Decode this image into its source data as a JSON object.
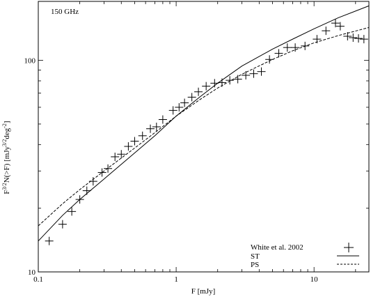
{
  "chart_data": {
    "type": "scatter",
    "annotation": "150 GHz",
    "xlabel": "F [mJy]",
    "ylabel_parts": {
      "prefix": "F",
      "exp1": "3/2",
      "mid": "N(>F) [mJy",
      "exp2": "3/2",
      "mid2": "deg",
      "exp3": "-2",
      "suffix": "]"
    },
    "x_scale": "log",
    "y_scale": "log",
    "xlim": [
      0.1,
      25
    ],
    "ylim": [
      10,
      190
    ],
    "x_ticks": [
      {
        "value": 0.1,
        "label": "0.1"
      },
      {
        "value": 1,
        "label": "1"
      },
      {
        "value": 10,
        "label": "10"
      }
    ],
    "y_ticks": [
      {
        "value": 10,
        "label": "10"
      },
      {
        "value": 100,
        "label": "100"
      }
    ],
    "legend_position": "bottom-right",
    "series": [
      {
        "name": "White et al. 2002",
        "kind": "markers",
        "marker": "plus",
        "x": [
          0.12,
          0.15,
          0.175,
          0.2,
          0.225,
          0.25,
          0.29,
          0.32,
          0.36,
          0.4,
          0.45,
          0.5,
          0.57,
          0.65,
          0.72,
          0.8,
          0.95,
          1.05,
          1.15,
          1.3,
          1.45,
          1.65,
          1.9,
          2.15,
          2.45,
          2.8,
          3.2,
          3.65,
          4.15,
          4.75,
          5.55,
          6.4,
          7.3,
          8.6,
          10.5,
          12.2,
          14.3,
          15.5,
          17.5,
          19.2,
          21.0,
          23.0
        ],
        "y": [
          14.0,
          16.8,
          19.3,
          22.0,
          24.2,
          26.8,
          29.5,
          30.8,
          35.0,
          36.0,
          39.2,
          41.5,
          44.0,
          47.5,
          48.5,
          52.5,
          58.0,
          60.0,
          63.0,
          67.0,
          71.0,
          75.5,
          78.0,
          78.5,
          80.5,
          81.5,
          85.0,
          86.5,
          88.5,
          101.0,
          108.0,
          115.0,
          115.0,
          117.0,
          126.0,
          138.0,
          150.0,
          145.0,
          130.0,
          128.0,
          127.0,
          126.0
        ]
      },
      {
        "name": "ST",
        "kind": "line",
        "style": "solid",
        "x": [
          0.1,
          0.15,
          0.2,
          0.3,
          0.5,
          0.7,
          1.0,
          1.5,
          2.0,
          3.0,
          5.0,
          7.0,
          10.0,
          15.0,
          25.0
        ],
        "y": [
          14.0,
          18.5,
          22.0,
          27.5,
          36.5,
          44.0,
          54.5,
          67.5,
          78.0,
          94.0,
          113.0,
          126.0,
          141.0,
          159.0,
          181.0
        ]
      },
      {
        "name": "PS",
        "kind": "line",
        "style": "dashed",
        "x": [
          0.1,
          0.15,
          0.2,
          0.3,
          0.5,
          0.7,
          1.0,
          1.5,
          2.0,
          3.0,
          5.0,
          7.0,
          10.0,
          15.0,
          25.0
        ],
        "y": [
          16.5,
          21.0,
          24.5,
          30.0,
          38.5,
          45.5,
          54.5,
          65.5,
          74.0,
          86.0,
          101.0,
          111.0,
          121.0,
          131.0,
          143.0
        ]
      }
    ]
  }
}
